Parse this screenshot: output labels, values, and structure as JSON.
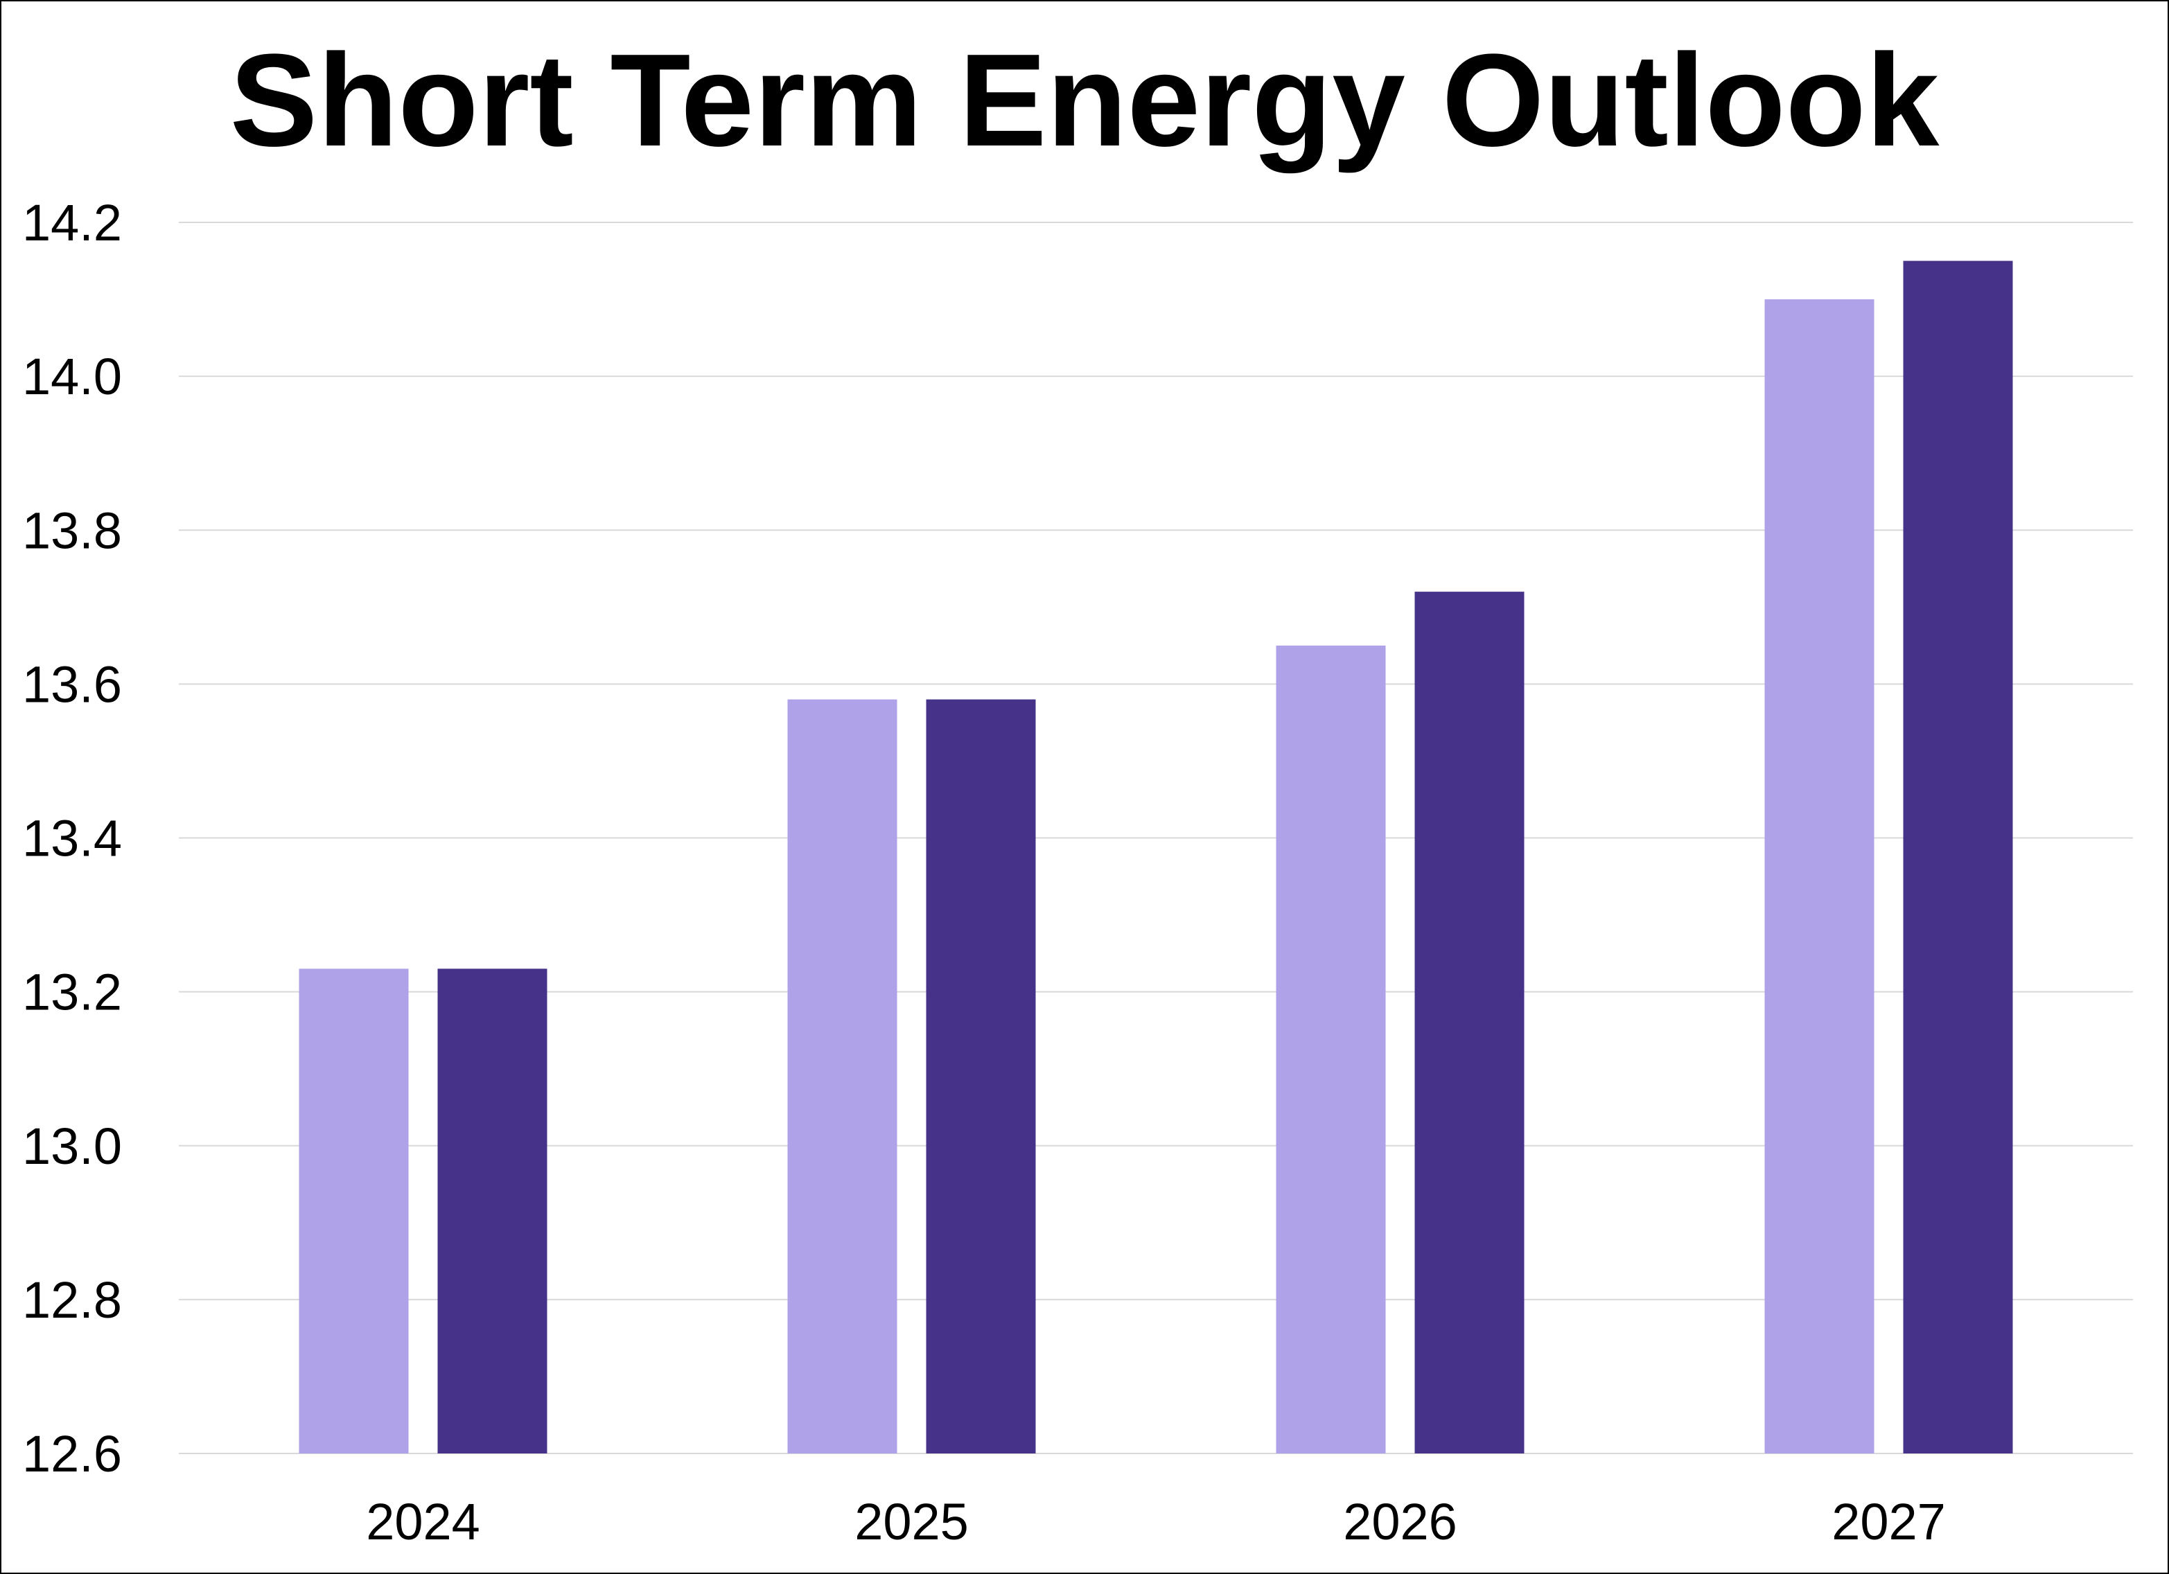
{
  "chart_data": {
    "type": "bar",
    "title": "Short Term Energy Outlook",
    "xlabel": "",
    "ylabel": "",
    "categories": [
      "2024",
      "2025",
      "2026",
      "2027"
    ],
    "series": [
      {
        "values": [
          13.23,
          13.58,
          13.65,
          14.1
        ],
        "color": "#b0a2e8"
      },
      {
        "values": [
          13.23,
          13.58,
          13.72,
          14.15
        ],
        "color": "#463389"
      }
    ],
    "ylim": [
      12.6,
      14.2
    ],
    "yticks": [
      "12.6",
      "12.8",
      "13.0",
      "13.2",
      "13.4",
      "13.6",
      "13.8",
      "14.0",
      "14.2"
    ],
    "grid": true,
    "gridColor": "#d9d9d9",
    "legend": "none"
  }
}
